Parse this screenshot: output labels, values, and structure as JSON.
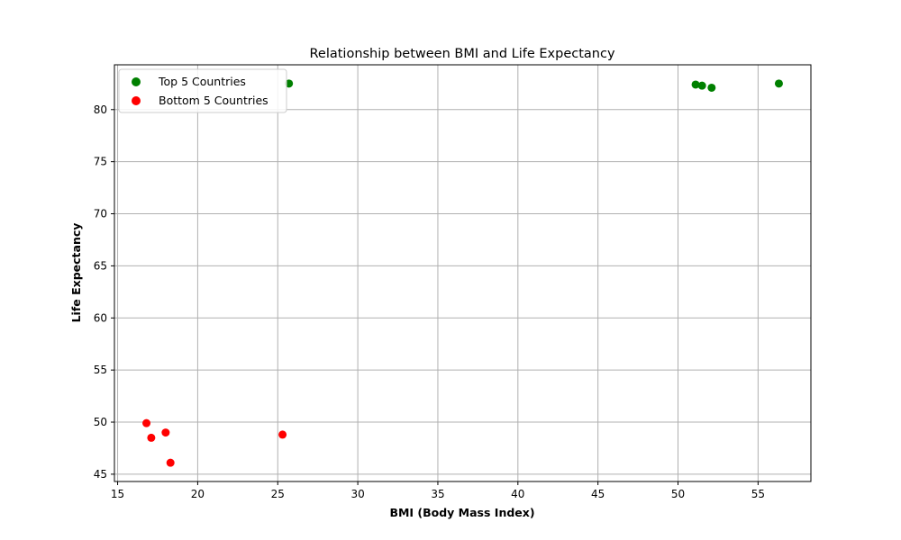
{
  "chart_data": {
    "type": "scatter",
    "title": "Relationship between BMI and Life Expectancy",
    "xlabel": "BMI (Body Mass Index)",
    "ylabel": "Life Expectancy",
    "xlim": [
      14.8,
      58.3
    ],
    "ylim": [
      44.3,
      84.3
    ],
    "xticks": [
      15,
      20,
      25,
      30,
      35,
      40,
      45,
      50,
      55
    ],
    "yticks": [
      45,
      50,
      55,
      60,
      65,
      70,
      75,
      80
    ],
    "grid": true,
    "legend_position": "top-left",
    "series": [
      {
        "name": "Top 5 Countries",
        "color": "#008000",
        "points": [
          {
            "x": 25.7,
            "y": 82.5
          },
          {
            "x": 51.1,
            "y": 82.4
          },
          {
            "x": 51.5,
            "y": 82.3
          },
          {
            "x": 52.1,
            "y": 82.1
          },
          {
            "x": 56.3,
            "y": 82.5
          }
        ]
      },
      {
        "name": "Bottom 5 Countries",
        "color": "#ff0000",
        "points": [
          {
            "x": 16.8,
            "y": 49.9
          },
          {
            "x": 17.1,
            "y": 48.5
          },
          {
            "x": 18.0,
            "y": 49.0
          },
          {
            "x": 18.3,
            "y": 46.1
          },
          {
            "x": 25.3,
            "y": 48.8
          }
        ]
      }
    ]
  }
}
